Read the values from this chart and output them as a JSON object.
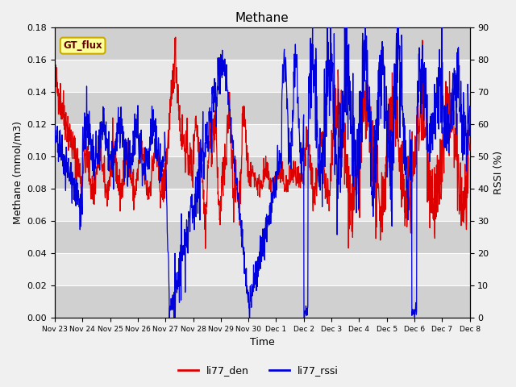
{
  "title": "Methane",
  "xlabel": "Time",
  "ylabel_left": "Methane (mmol/m3)",
  "ylabel_right": "RSSI (%)",
  "ylim_left": [
    0.0,
    0.18
  ],
  "ylim_right": [
    0,
    90
  ],
  "yticks_left": [
    0.0,
    0.02,
    0.04,
    0.06,
    0.08,
    0.1,
    0.12,
    0.14,
    0.16,
    0.18
  ],
  "yticks_right": [
    0,
    10,
    20,
    30,
    40,
    50,
    60,
    70,
    80,
    90
  ],
  "fig_bg_color": "#f0f0f0",
  "plot_bg_color": "#d0d0d0",
  "stripe_light": "#e8e8e8",
  "stripe_dark": "#d0d0d0",
  "legend_label_red": "li77_den",
  "legend_label_blue": "li77_rssi",
  "annotation_text": "GT_flux",
  "annotation_bg": "#ffff99",
  "annotation_border": "#ccaa00",
  "line_color_red": "#dd0000",
  "line_color_blue": "#0000dd",
  "xtick_labels": [
    "Nov 23",
    "Nov 24",
    "Nov 25",
    "Nov 26",
    "Nov 27",
    "Nov 28",
    "Nov 29",
    "Nov 30",
    "Dec 1",
    "Dec 2",
    "Dec 3",
    "Dec 4",
    "Dec 5",
    "Dec 6",
    "Dec 7",
    "Dec 8"
  ],
  "n_points": 1500
}
